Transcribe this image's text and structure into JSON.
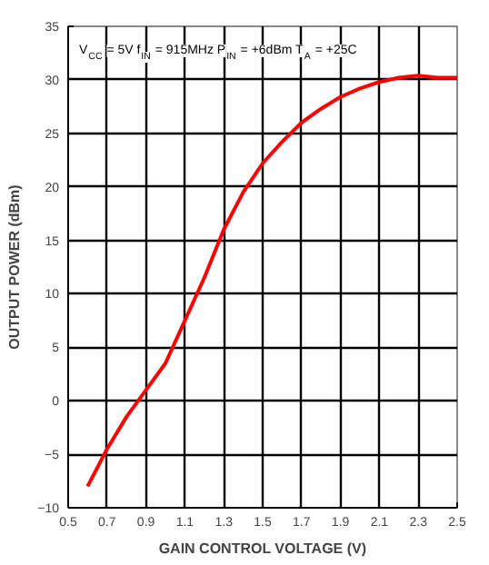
{
  "chart_data": {
    "type": "line",
    "xlabel": "GAIN CONTROL VOLTAGE (V)",
    "ylabel": "OUTPUT POWER (dBm)",
    "annotations": [
      "V$_{CC}$ = 5V f$_{IN}$ = 915MHz P$_{IN}$ = +6dBm T$_{A}$ = +25C"
    ],
    "x": [
      0.6,
      0.7,
      0.8,
      0.9,
      1.0,
      1.1,
      1.2,
      1.3,
      1.4,
      1.5,
      1.6,
      1.7,
      1.8,
      1.9,
      2.0,
      2.1,
      2.2,
      2.3,
      2.4,
      2.5
    ],
    "series": [
      {
        "color": "#ff0000",
        "values": [
          -8,
          -4.5,
          -1.5,
          1,
          3.5,
          7.5,
          11.5,
          16,
          19.5,
          22.2,
          24.2,
          26,
          27.3,
          28.4,
          29.2,
          29.8,
          30.2,
          30.4,
          30.2,
          30.2
        ]
      }
    ],
    "xlim": [
      0.5,
      2.5
    ],
    "ylim": [
      -10,
      35
    ],
    "xticks": [
      0.5,
      0.7,
      0.9,
      1.1,
      1.3,
      1.5,
      1.7,
      1.9,
      2.1,
      2.3,
      2.5
    ],
    "yticks": [
      -10,
      -5,
      0,
      5,
      10,
      15,
      20,
      25,
      30,
      35
    ],
    "grid": true,
    "marker": "none",
    "line_style": "solid"
  }
}
